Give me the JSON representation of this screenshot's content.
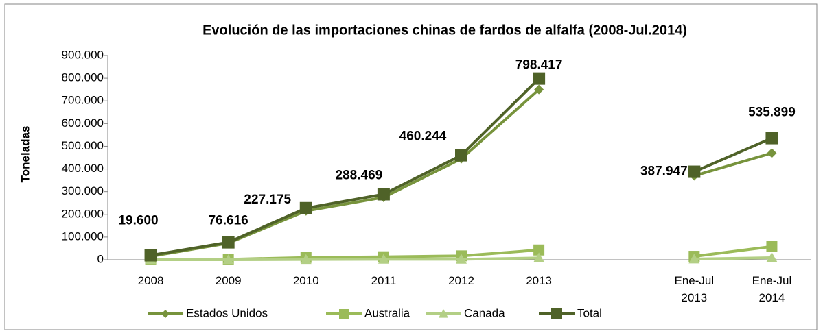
{
  "chart_data": {
    "type": "line",
    "title": "Evolución de las importaciones chinas de fardos de alfalfa (2008-Jul.2014)",
    "y_label": "Toneladas",
    "categories": [
      "2008",
      "2009",
      "2010",
      "2011",
      "2012",
      "2013",
      null,
      "Ene-Jul\n2013",
      "Ene-Jul\n2014"
    ],
    "series": [
      {
        "name": "Estados Unidos",
        "color": "#77933c",
        "marker": "diamond",
        "values": [
          15000,
          73000,
          215000,
          275000,
          445000,
          750000,
          null,
          370000,
          470000
        ]
      },
      {
        "name": "Australia",
        "color": "#9bbb59",
        "marker": "square",
        "values": [
          0,
          2000,
          10000,
          13000,
          17000,
          43000,
          null,
          15000,
          58000
        ]
      },
      {
        "name": "Canada",
        "color": "#b3cf85",
        "marker": "triangle",
        "values": [
          0,
          0,
          1000,
          2000,
          2000,
          8000,
          null,
          3000,
          9000
        ]
      },
      {
        "name": "Total",
        "color": "#4f6228",
        "marker": "square",
        "values": [
          19600,
          76616,
          227175,
          288469,
          460244,
          798417,
          null,
          387947,
          535899
        ],
        "value_labels": [
          "19.600",
          "76.616",
          "227.175",
          "288.469",
          "460.244",
          "798.417",
          null,
          "387.947",
          "535.899"
        ]
      }
    ],
    "ylim": [
      0,
      900000
    ],
    "yticks": [
      0,
      {
        "value": 100000,
        "label": "100.000"
      },
      {
        "value": 200000,
        "label": "200.000"
      },
      {
        "value": 300000,
        "label": "300.000"
      },
      {
        "value": 400000,
        "label": "400.000"
      },
      {
        "value": 500000,
        "label": "500.000"
      },
      {
        "value": 600000,
        "label": "600.000"
      },
      {
        "value": 700000,
        "label": "700.000"
      },
      {
        "value": 800000,
        "label": "800.000"
      },
      {
        "value": 900000,
        "label": "900.000"
      }
    ],
    "grid": false,
    "legend": "bottom"
  }
}
